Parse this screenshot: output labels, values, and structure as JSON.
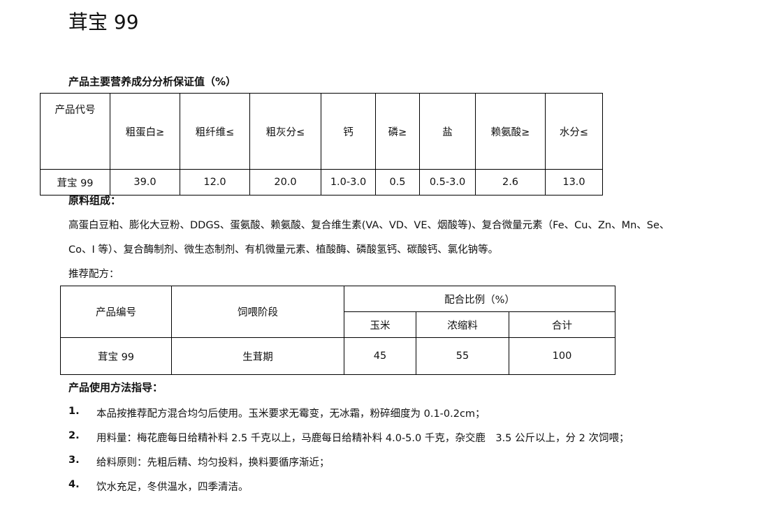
{
  "title": "茸宝 99",
  "nutrition": {
    "heading": "产品主要营养成分分析保证值（%）",
    "headers": [
      "产品代号",
      "粗蛋白≥",
      "粗纤维≤",
      "粗灰分≤",
      "钙",
      "磷≥",
      "盐",
      "赖氨酸≥",
      "水分≤"
    ],
    "row": [
      "茸宝 99",
      "39.0",
      "12.0",
      "20.0",
      "1.0-3.0",
      "0.5",
      "0.5-3.0",
      "2.6",
      "13.0"
    ]
  },
  "ingredients": {
    "heading": "原料组成：",
    "line1": "高蛋白豆粕、膨化大豆粉、DDGS、蛋氨酸、赖氨酸、复合维生素(VA、VD、VE、烟酸等)、复合微量元素（Fe、Cu、Zn、Mn、Se、",
    "line2": "Co、I 等）、复合酶制剂、微生态制剂、有机微量元素、植酸酶、磷酸氢钙、碳酸钙、氯化钠等。"
  },
  "formula": {
    "heading": "推荐配方：",
    "col_code": "产品编号",
    "col_stage": "饲喂阶段",
    "col_ratio": "配合比例（%）",
    "sub": [
      "玉米",
      "浓缩料",
      "合计"
    ],
    "row": {
      "code": "茸宝 99",
      "stage": "生茸期",
      "corn": "45",
      "concentrate": "55",
      "total": "100"
    }
  },
  "usage": {
    "heading": "产品使用方法指导：",
    "items": [
      {
        "num": "1.",
        "text": "本品按推荐配方混合均匀后使用。玉米要求无霉变，无冰霜，粉碎细度为 0.1-0.2cm；"
      },
      {
        "num": "2.",
        "text": "用料量：梅花鹿每日给精补料 2.5 千克以上，马鹿每日给精补料 4.0-5.0 千克，杂交鹿　3.5 公斤以上，分 2 次饲喂；"
      },
      {
        "num": "3.",
        "text": "给料原则：先粗后精、均匀投料，换料要循序渐近；"
      },
      {
        "num": "4.",
        "text": "饮水充足，冬供温水，四季清洁。"
      }
    ]
  }
}
